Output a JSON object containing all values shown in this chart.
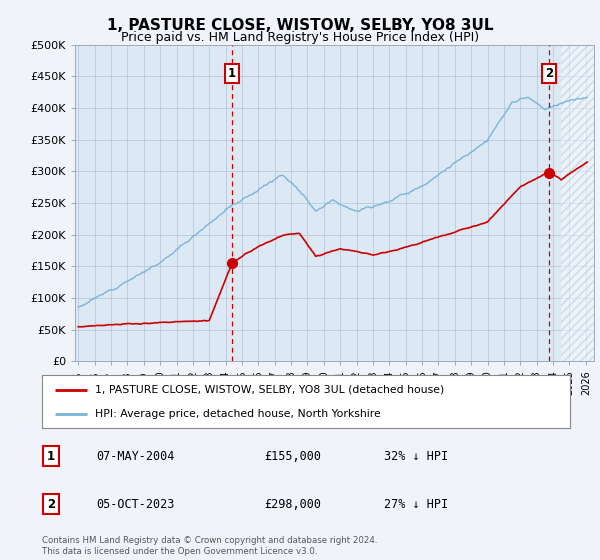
{
  "title": "1, PASTURE CLOSE, WISTOW, SELBY, YO8 3UL",
  "subtitle": "Price paid vs. HM Land Registry's House Price Index (HPI)",
  "legend_line1": "1, PASTURE CLOSE, WISTOW, SELBY, YO8 3UL (detached house)",
  "legend_line2": "HPI: Average price, detached house, North Yorkshire",
  "table_rows": [
    {
      "num": "1",
      "date": "07-MAY-2004",
      "price": "£155,000",
      "hpi": "32% ↓ HPI"
    },
    {
      "num": "2",
      "date": "05-OCT-2023",
      "price": "£298,000",
      "hpi": "27% ↓ HPI"
    }
  ],
  "footnote1": "Contains HM Land Registry data © Crown copyright and database right 2024.",
  "footnote2": "This data is licensed under the Open Government Licence v3.0.",
  "sale1_year": 2004.37,
  "sale1_price": 155000,
  "sale2_year": 2023.75,
  "sale2_price": 298000,
  "hpi_color": "#7ab4d8",
  "sale_color": "#cc0000",
  "vline_color": "#cc0000",
  "background_color": "#f0f4fa",
  "plot_bg_color": "#dde8f5",
  "ylim": [
    0,
    500000
  ],
  "xlim_start": 1994.8,
  "xlim_end": 2026.5,
  "yticks": [
    0,
    50000,
    100000,
    150000,
    200000,
    250000,
    300000,
    350000,
    400000,
    450000,
    500000
  ],
  "ytick_labels": [
    "£0",
    "£50K",
    "£100K",
    "£150K",
    "£200K",
    "£250K",
    "£300K",
    "£350K",
    "£400K",
    "£450K",
    "£500K"
  ],
  "xticks": [
    1995,
    1996,
    1997,
    1998,
    1999,
    2000,
    2001,
    2002,
    2003,
    2004,
    2005,
    2006,
    2007,
    2008,
    2009,
    2010,
    2011,
    2012,
    2013,
    2014,
    2015,
    2016,
    2017,
    2018,
    2019,
    2020,
    2021,
    2022,
    2023,
    2024,
    2025,
    2026
  ]
}
